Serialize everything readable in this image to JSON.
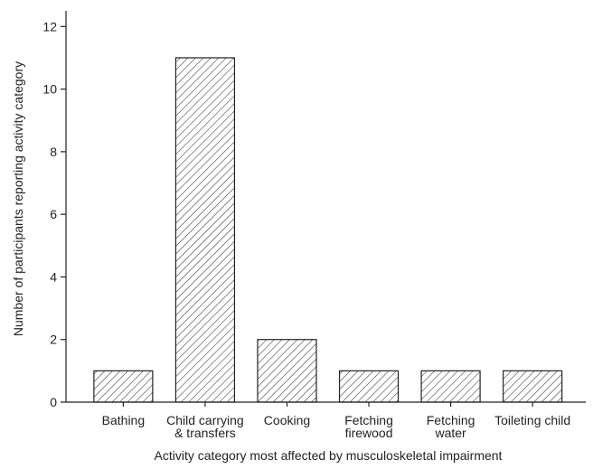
{
  "chart_data": {
    "type": "bar",
    "title": "",
    "xlabel": "Activity category most affected  by musculoskeletal impairment",
    "ylabel": "Number of participants reporting activity category",
    "categories": [
      [
        "Bathing"
      ],
      [
        "Child carrying",
        "& transfers"
      ],
      [
        "Cooking"
      ],
      [
        "Fetching",
        "firewood"
      ],
      [
        "Fetching",
        "water"
      ],
      [
        "Toileting child"
      ]
    ],
    "values": [
      1,
      11,
      2,
      1,
      1,
      1
    ],
    "ylim": [
      0,
      12.5
    ],
    "yticks": [
      0,
      2,
      4,
      6,
      8,
      10,
      12
    ],
    "grid": false,
    "bar_fill": "diagonal-hatch",
    "colors": {
      "bar_stroke": "#222222",
      "hatch": "#333333",
      "axis": "#222222"
    }
  }
}
